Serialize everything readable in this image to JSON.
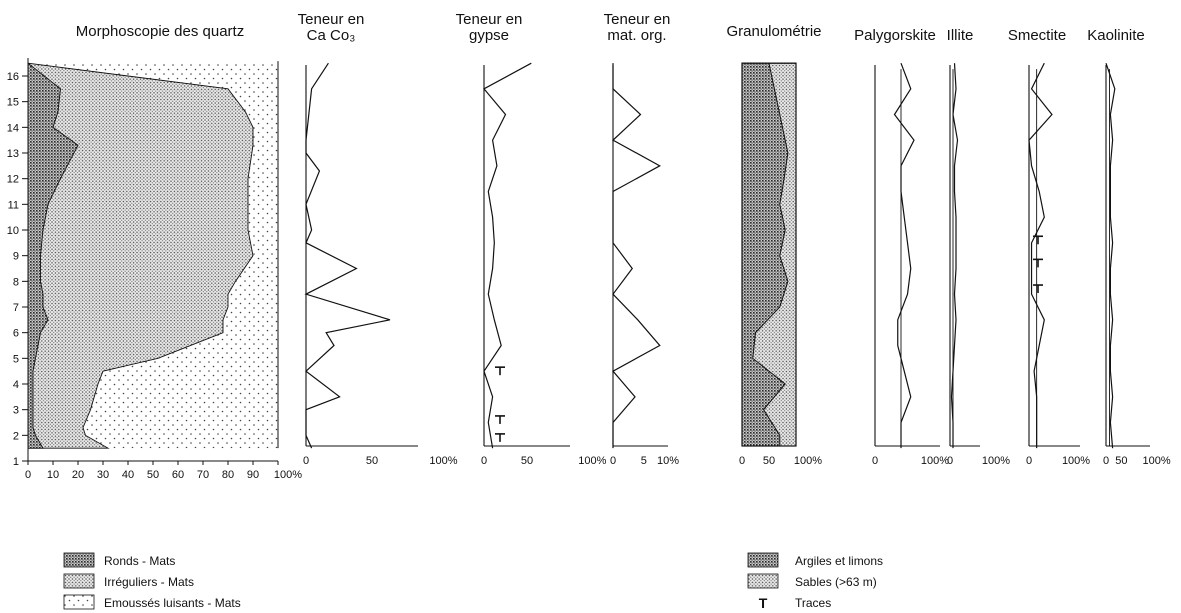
{
  "chart_data": [
    {
      "id": "quartz",
      "type": "area",
      "title": "Morphoscopie des quartz",
      "xlim": [
        0,
        100
      ],
      "x_ticks": [
        "0",
        "10",
        "20",
        "30",
        "40",
        "50",
        "60",
        "70",
        "80",
        "90",
        "100%"
      ],
      "y_ticks": [
        "1",
        "2",
        "3",
        "4",
        "5",
        "6",
        "7",
        "8",
        "9",
        "10",
        "11",
        "12",
        "13",
        "14",
        "15",
        "16"
      ],
      "levels": [
        16.5,
        15.5,
        14.6,
        14,
        13.3,
        12,
        11,
        10,
        9,
        8,
        7.5,
        7,
        6.5,
        6,
        5,
        4.5,
        4,
        3,
        2.3,
        2,
        1.5
      ],
      "series": [
        {
          "name": "Ronds - Mats",
          "values": [
            0,
            13,
            12,
            10,
            20,
            13,
            8,
            6,
            5,
            5,
            6,
            6,
            8,
            5,
            3,
            2,
            2,
            2,
            2,
            3,
            6
          ]
        },
        {
          "name": "Irréguliers - Mats",
          "values": [
            0,
            80,
            87,
            90,
            90,
            88,
            88,
            88,
            90,
            83,
            80,
            80,
            78,
            78,
            52,
            30,
            28,
            25,
            22,
            23,
            32
          ]
        }
      ]
    },
    {
      "id": "caco3",
      "type": "line",
      "title": [
        "Teneur en",
        "Ca Co₃"
      ],
      "x_ticks": [
        "0",
        "50",
        "100%"
      ],
      "xlim": [
        0,
        100
      ],
      "levels": [
        16.5,
        15.5,
        13.5,
        13,
        12.3,
        11,
        10,
        9.5,
        8.5,
        7.5,
        6.5,
        6,
        5.5,
        4.5,
        3.5,
        3,
        2.3,
        2,
        1.5
      ],
      "values": [
        20,
        5,
        0,
        0,
        12,
        0,
        5,
        0,
        45,
        0,
        75,
        18,
        25,
        0,
        30,
        0,
        0,
        0,
        5
      ]
    },
    {
      "id": "gypse",
      "type": "line",
      "title": [
        "Teneur en",
        "gypse"
      ],
      "x_ticks": [
        "0",
        "50",
        "100%"
      ],
      "xlim": [
        0,
        100
      ],
      "levels": [
        16.5,
        15.5,
        14.5,
        13.5,
        12.5,
        11.5,
        10.5,
        9.5,
        8.5,
        7.5,
        6.5,
        5.5,
        4.5,
        3.5,
        2.5,
        1.5
      ],
      "values": [
        55,
        0,
        25,
        10,
        15,
        5,
        10,
        12,
        10,
        5,
        12,
        20,
        0,
        10,
        5,
        10
      ],
      "traces": [
        4.5,
        2.6,
        1.9
      ]
    },
    {
      "id": "matorg",
      "type": "line",
      "title": [
        "Teneur en",
        "mat. org."
      ],
      "x_ticks": [
        "0",
        "5",
        "10%"
      ],
      "xlim": [
        0,
        10
      ],
      "levels": [
        16.5,
        15.5,
        14.5,
        13.5,
        12.5,
        11.5,
        10.5,
        9.5,
        8.5,
        7.5,
        6.5,
        5.5,
        4.5,
        3.5,
        2.5,
        1.5
      ],
      "values": [
        0,
        0,
        5,
        0,
        8.5,
        0,
        0,
        0,
        3.5,
        0,
        4.5,
        8.5,
        0,
        4,
        0,
        0
      ]
    },
    {
      "id": "granulo",
      "type": "area",
      "title": "Granulométrie",
      "x_ticks": [
        "0",
        "50",
        "100%"
      ],
      "xlim": [
        0,
        100
      ],
      "levels": [
        16.5,
        15,
        14,
        13,
        12,
        11,
        10,
        9,
        8,
        7,
        6,
        5,
        4,
        3,
        2,
        1.5
      ],
      "series": [
        {
          "name": "Argiles et limons",
          "values": [
            50,
            65,
            75,
            85,
            78,
            70,
            80,
            70,
            85,
            70,
            25,
            20,
            80,
            40,
            70,
            70
          ]
        }
      ]
    },
    {
      "id": "palygorskite",
      "type": "line",
      "title": "Palygorskite",
      "x_ticks": [
        "0",
        "100%"
      ],
      "xlim": [
        0,
        100
      ],
      "levels": [
        16.5,
        15.5,
        14.5,
        13.5,
        12.5,
        11.5,
        10.5,
        9.5,
        8.5,
        7.5,
        6.5,
        5.5,
        4.5,
        3.5,
        2.5,
        1.5
      ],
      "values": [
        40,
        55,
        30,
        60,
        40,
        40,
        45,
        50,
        55,
        50,
        35,
        35,
        45,
        55,
        40,
        40
      ],
      "baseline_pct": 40
    },
    {
      "id": "illite",
      "type": "line",
      "title": "Illite",
      "x_ticks": [
        "0",
        "100%"
      ],
      "xlim": [
        0,
        100
      ],
      "levels": [
        16.5,
        15.5,
        14.5,
        13.5,
        12.5,
        11.5,
        10.5,
        9.5,
        8.5,
        7.5,
        6.5,
        5.5,
        4.5,
        3.5,
        2.5,
        1.5
      ],
      "values": [
        15,
        20,
        10,
        25,
        15,
        15,
        20,
        20,
        20,
        15,
        20,
        15,
        10,
        5,
        10,
        10
      ],
      "baseline_pct": 10
    },
    {
      "id": "smectite",
      "type": "line",
      "title": "Smectite",
      "x_ticks": [
        "0",
        "100%"
      ],
      "xlim": [
        0,
        100
      ],
      "levels": [
        16.5,
        15.5,
        14.5,
        13.5,
        12.5,
        11.5,
        10.5,
        9.5,
        8.5,
        7.5,
        6.5,
        5.5,
        4.5,
        3.5,
        2.5,
        1.5
      ],
      "values": [
        30,
        5,
        45,
        0,
        5,
        20,
        30,
        5,
        5,
        5,
        30,
        20,
        10,
        15,
        15,
        15
      ],
      "baseline_pct": 15,
      "traces": [
        9.6,
        8.7,
        7.7
      ]
    },
    {
      "id": "kaolinite",
      "type": "line",
      "title": "Kaolinite",
      "x_ticks": [
        "0",
        "50",
        "100%"
      ],
      "xlim": [
        0,
        100
      ],
      "levels": [
        16.5,
        15.5,
        14.5,
        13.5,
        12.5,
        11.5,
        10.5,
        9.5,
        8.5,
        7.5,
        6.5,
        5.5,
        4.5,
        3.5,
        2.5,
        1.5
      ],
      "values": [
        0,
        20,
        10,
        15,
        10,
        10,
        10,
        15,
        10,
        10,
        15,
        10,
        10,
        15,
        10,
        15
      ],
      "baseline_pct": 8
    }
  ],
  "legend_left": [
    {
      "label": "Ronds - Mats",
      "pattern": "dense-dots"
    },
    {
      "label": "Irréguliers - Mats",
      "pattern": "medium-dots"
    },
    {
      "label": "Emoussés luisants - Mats",
      "pattern": "sparse-dots"
    }
  ],
  "legend_right": [
    {
      "label": "Argiles et limons",
      "pattern": "dense-dots"
    },
    {
      "label": "Sables (>63   m)",
      "pattern": "medium-dots"
    },
    {
      "label": "Traces",
      "symbol": "T"
    }
  ]
}
